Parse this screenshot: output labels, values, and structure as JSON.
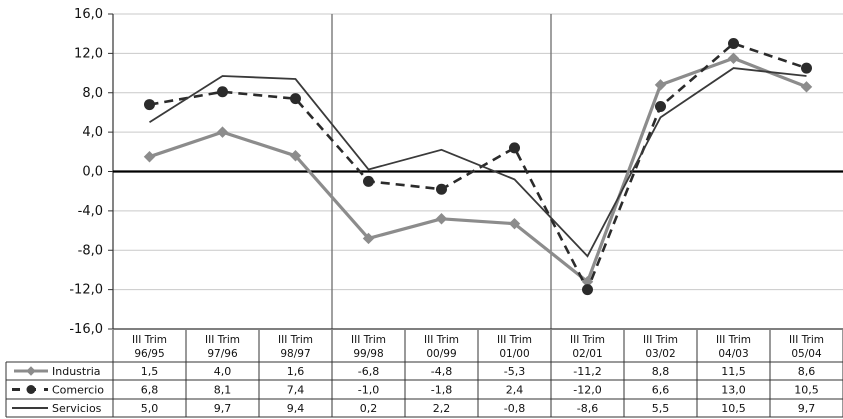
{
  "chart_data": {
    "type": "line",
    "title": "",
    "xlabel": "",
    "ylabel": "",
    "ylim": [
      -16,
      16
    ],
    "ytick_step": 4,
    "ytick_labels": [
      "16,0",
      "12,0",
      "8,0",
      "4,0",
      "0,0",
      "-4,0",
      "-8,0",
      "-12,0",
      "-16,0"
    ],
    "categories": [
      [
        "III Trim",
        "96/95"
      ],
      [
        "III Trim",
        "97/96"
      ],
      [
        "III Trim",
        "98/97"
      ],
      [
        "III Trim",
        "99/98"
      ],
      [
        "III Trim",
        "00/99"
      ],
      [
        "III Trim",
        "01/00"
      ],
      [
        "III Trim",
        "02/01"
      ],
      [
        "III Trim",
        "03/02"
      ],
      [
        "III Trim",
        "04/03"
      ],
      [
        "III Trim",
        "05/04"
      ]
    ],
    "vertical_markers_after_index": [
      2,
      5
    ],
    "grid": true,
    "legend": "data-table",
    "series": [
      {
        "name": "Industria",
        "values": [
          1.5,
          4.0,
          1.6,
          -6.8,
          -4.8,
          -5.3,
          -11.2,
          8.8,
          11.5,
          8.6
        ],
        "labels": [
          "1,5",
          "4,0",
          "1,6",
          "-6,8",
          "-4,8",
          "-5,3",
          "-11,2",
          "8,8",
          "11,5",
          "8,6"
        ],
        "color": "#8c8c8c",
        "style": "solid-diamond"
      },
      {
        "name": "Comercio",
        "values": [
          6.8,
          8.1,
          7.4,
          -1.0,
          -1.8,
          2.4,
          -12.0,
          6.6,
          13.0,
          10.5
        ],
        "labels": [
          "6,8",
          "8,1",
          "7,4",
          "-1,0",
          "-1,8",
          "2,4",
          "-12,0",
          "6,6",
          "13,0",
          "10,5"
        ],
        "color": "#2b2b2b",
        "style": "dashed-circle"
      },
      {
        "name": "Servicios",
        "values": [
          5.0,
          9.7,
          9.4,
          0.2,
          2.2,
          -0.8,
          -8.6,
          5.5,
          10.5,
          9.7
        ],
        "labels": [
          "5,0",
          "9,7",
          "9,4",
          "0,2",
          "2,2",
          "-0,8",
          "-8,6",
          "5,5",
          "10,5",
          "9,7"
        ],
        "color": "#3a3a3a",
        "style": "solid"
      }
    ]
  }
}
